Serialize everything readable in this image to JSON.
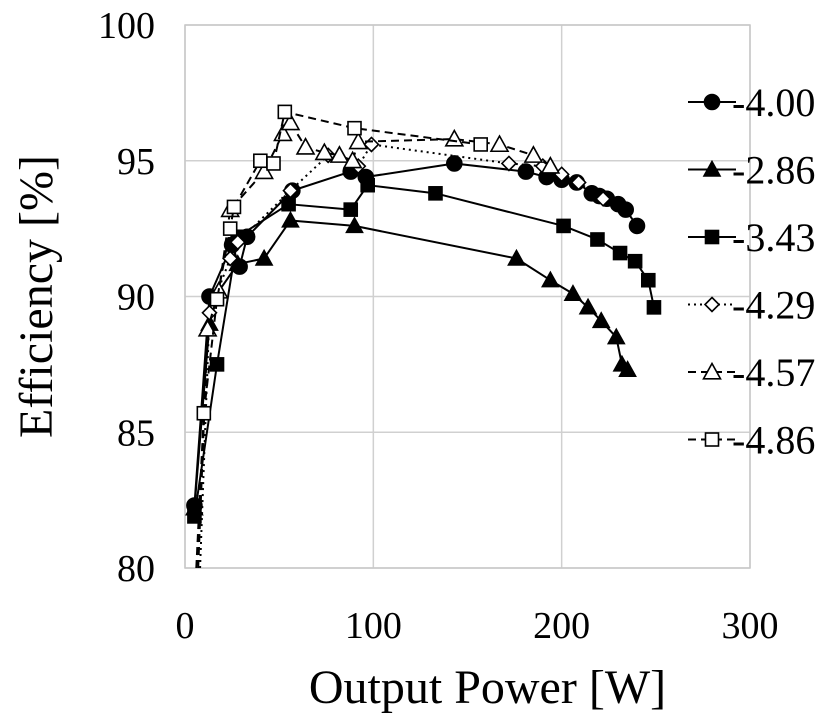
{
  "chart_data": {
    "type": "line",
    "title": "",
    "xlabel": "Output Power [W]",
    "ylabel": "Efficiency [%]",
    "xlim": [
      0,
      300
    ],
    "ylim": [
      80,
      100
    ],
    "x_ticks": [
      "0",
      "100",
      "200",
      "300"
    ],
    "y_ticks": [
      "80",
      "85",
      "90",
      "95",
      "100"
    ],
    "grid": "vertical and horizontal gridlines",
    "legend_position": "right",
    "series": [
      {
        "name": "4.00",
        "line_style": "solid",
        "marker": "filled-circle",
        "x": [
          5,
          13,
          25,
          29,
          33,
          57,
          88,
          96,
          143,
          181,
          192,
          200,
          208,
          216,
          220,
          224,
          230,
          234,
          240
        ],
        "y": [
          82.3,
          90.0,
          91.9,
          91.1,
          92.2,
          93.9,
          94.6,
          94.4,
          94.9,
          94.6,
          94.4,
          94.3,
          94.2,
          93.8,
          93.7,
          93.6,
          93.4,
          93.2,
          92.6
        ]
      },
      {
        "name": "2.86",
        "line_style": "solid",
        "marker": "filled-triangle",
        "x": [
          5,
          13,
          18,
          28,
          42,
          56,
          90,
          176,
          194,
          206,
          214,
          221,
          229,
          232,
          235
        ],
        "y": [
          82.2,
          89.0,
          90.2,
          91.2,
          91.4,
          92.8,
          92.6,
          91.4,
          90.6,
          90.1,
          89.6,
          89.1,
          88.5,
          87.5,
          87.3
        ]
      },
      {
        "name": "3.43",
        "line_style": "solid",
        "marker": "filled-square",
        "x": [
          5,
          17,
          28,
          55,
          88,
          97,
          133,
          201,
          219,
          231,
          239,
          246,
          249
        ],
        "y": [
          81.9,
          87.5,
          92.2,
          93.4,
          93.2,
          94.1,
          93.8,
          92.6,
          92.1,
          91.6,
          91.3,
          90.6,
          89.6
        ]
      },
      {
        "name": "4.29",
        "line_style": "dotted",
        "marker": "open-diamond",
        "x": [
          8,
          13,
          24,
          28,
          56,
          76,
          92,
          99,
          172,
          190,
          200,
          209,
          222
        ],
        "y": [
          80.0,
          89.4,
          91.4,
          92.0,
          93.9,
          95.2,
          94.8,
          95.6,
          94.9,
          94.8,
          94.5,
          94.2,
          93.6
        ]
      },
      {
        "name": "4.57",
        "line_style": "dashed",
        "marker": "open-triangle",
        "x": [
          7,
          12,
          18,
          24,
          42,
          52,
          56,
          64,
          74,
          82,
          89,
          92,
          143,
          167,
          185,
          194
        ],
        "y": [
          80.0,
          88.8,
          90.2,
          93.2,
          94.6,
          96.0,
          96.4,
          95.5,
          95.3,
          95.2,
          95.0,
          95.7,
          95.8,
          95.6,
          95.2,
          94.8
        ]
      },
      {
        "name": "4.86",
        "line_style": "dashed",
        "marker": "open-square",
        "x": [
          6,
          10,
          17,
          24,
          26,
          40,
          47,
          53,
          90,
          157
        ],
        "y": [
          80.0,
          85.7,
          89.9,
          92.5,
          93.3,
          95.0,
          94.9,
          96.8,
          96.2,
          95.6
        ]
      }
    ]
  }
}
